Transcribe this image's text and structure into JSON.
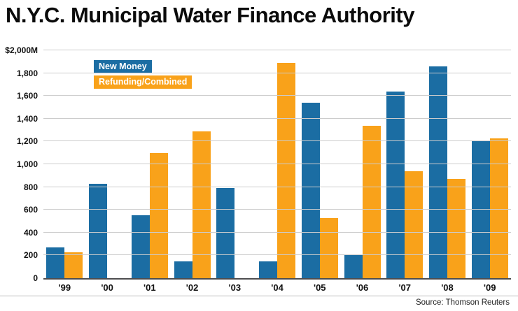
{
  "title": "N.Y.C. Municipal Water Finance Authority",
  "source": "Source: Thomson Reuters",
  "colors": {
    "new_money": "#1b6da3",
    "refunding": "#f9a21a",
    "grid": "#cccccc",
    "axis": "#4d4d4f"
  },
  "legend": [
    {
      "label": "New Money",
      "color": "#1b6da3"
    },
    {
      "label": "Refunding/Combined",
      "color": "#f9a21a"
    }
  ],
  "chart_data": {
    "type": "bar",
    "categories": [
      "'99",
      "'00",
      "'01",
      "'02",
      "'03",
      "'04",
      "'05",
      "'06",
      "'07",
      "'08",
      "'09"
    ],
    "series": [
      {
        "name": "New Money",
        "color": "#1b6da3",
        "values": [
          270,
          830,
          550,
          150,
          790,
          150,
          1540,
          210,
          1640,
          1860,
          1210
        ]
      },
      {
        "name": "Refunding/Combined",
        "color": "#f9a21a",
        "values": [
          230,
          0,
          1100,
          1290,
          0,
          1890,
          530,
          1340,
          940,
          870,
          1230
        ]
      }
    ],
    "title": "N.Y.C. Municipal Water Finance Authority",
    "xlabel": "",
    "ylabel": "",
    "ylim": [
      0,
      2000
    ],
    "yticks": [
      2000,
      1800,
      1600,
      1400,
      1200,
      1000,
      800,
      600,
      400,
      200,
      0
    ],
    "ytick_labels": [
      "$2,000M",
      "1,800",
      "1,600",
      "1,400",
      "1,200",
      "1,000",
      "800",
      "600",
      "400",
      "200",
      "0"
    ],
    "grid": true,
    "legend_position": "top-left"
  }
}
